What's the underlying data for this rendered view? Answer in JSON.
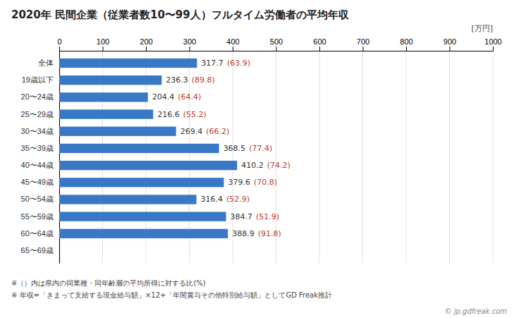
{
  "chart_data": {
    "type": "bar",
    "orientation": "horizontal",
    "title": "2020年 民間企業（従業者数10〜99人）フルタイム労働者の平均年収",
    "xlabel": "[万円]",
    "categories": [
      "全体",
      "19歳以下",
      "20〜24歳",
      "25〜29歳",
      "30〜34歳",
      "35〜39歳",
      "40〜44歳",
      "45〜49歳",
      "50〜54歳",
      "55〜59歳",
      "60〜64歳",
      "65〜69歳"
    ],
    "values": [
      317.7,
      236.3,
      204.4,
      216.6,
      269.4,
      368.5,
      410.2,
      379.6,
      316.4,
      384.7,
      388.9,
      0
    ],
    "value_labels": [
      "317.7",
      "236.3",
      "204.4",
      "216.6",
      "269.4",
      "368.5",
      "410.2",
      "379.6",
      "316.4",
      "384.7",
      "388.9",
      null
    ],
    "ratios": [
      63.9,
      89.8,
      64.4,
      55.2,
      66.2,
      77.4,
      74.2,
      70.8,
      52.9,
      51.9,
      91.8,
      null
    ],
    "ratio_labels": [
      "(63.9)",
      "(89.8)",
      "(64.4)",
      "(55.2)",
      "(66.2)",
      "(77.4)",
      "(74.2)",
      "(70.8)",
      "(52.9)",
      "(51.9)",
      "(91.8)",
      null
    ],
    "color": "#3878c5",
    "xlim": [
      0,
      1000
    ],
    "xticks": [
      0,
      100,
      200,
      300,
      400,
      500,
      600,
      700,
      800,
      900,
      1000
    ],
    "grid": true,
    "data_labels": true,
    "footnotes": [
      "※（）内は県内の同業種・同年齢層の平均所得に対する比(%)",
      "※ 年収=「きまって支給する現金給与額」×12+「年間賞与その他特別給与額」としてGD Freak推計"
    ],
    "watermark": "© jp.gdfreak.com"
  }
}
